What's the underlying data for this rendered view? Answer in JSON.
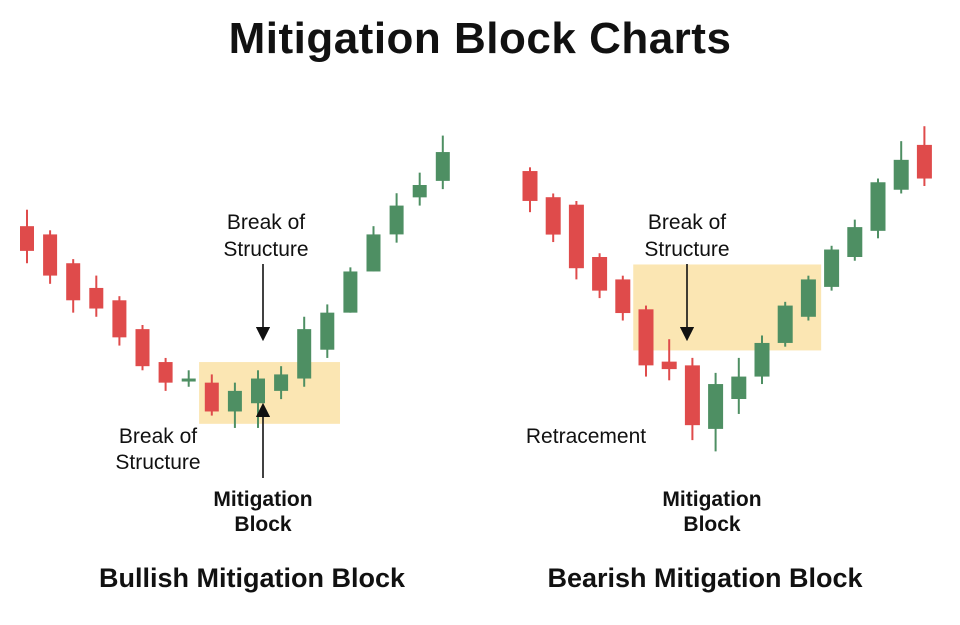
{
  "page": {
    "title": "Mitigation Block Charts"
  },
  "colors": {
    "bull": "#4e8f63",
    "bear": "#df4b4b",
    "zone": "#fbe6b3"
  },
  "chart_data": [
    {
      "type": "candlestick",
      "title": "Bullish Mitigation Block",
      "annotations": {
        "bos_top": [
          "Break of",
          "Structure"
        ],
        "bos_left": [
          "Break of",
          "Structure"
        ],
        "mitigation": [
          "Mitigation",
          "Block"
        ]
      },
      "candles": [
        {
          "o": 78,
          "c": 72,
          "h": 82,
          "l": 69
        },
        {
          "o": 76,
          "c": 66,
          "h": 77,
          "l": 64
        },
        {
          "o": 69,
          "c": 60,
          "h": 70,
          "l": 57
        },
        {
          "o": 63,
          "c": 58,
          "h": 66,
          "l": 56
        },
        {
          "o": 60,
          "c": 51,
          "h": 61,
          "l": 49
        },
        {
          "o": 53,
          "c": 44,
          "h": 54,
          "l": 43
        },
        {
          "o": 45,
          "c": 40,
          "h": 46,
          "l": 38
        },
        {
          "o": 41,
          "c": 41,
          "h": 43,
          "l": 39
        },
        {
          "o": 40,
          "c": 33,
          "h": 42,
          "l": 32
        },
        {
          "o": 33,
          "c": 38,
          "h": 40,
          "l": 29
        },
        {
          "o": 35,
          "c": 41,
          "h": 43,
          "l": 29
        },
        {
          "o": 38,
          "c": 42,
          "h": 44,
          "l": 36
        },
        {
          "o": 41,
          "c": 53,
          "h": 56,
          "l": 39
        },
        {
          "o": 48,
          "c": 57,
          "h": 59,
          "l": 46
        },
        {
          "o": 57,
          "c": 67,
          "h": 68,
          "l": 57
        },
        {
          "o": 67,
          "c": 76,
          "h": 78,
          "l": 67
        },
        {
          "o": 76,
          "c": 83,
          "h": 86,
          "l": 74
        },
        {
          "o": 85,
          "c": 88,
          "h": 91,
          "l": 83
        },
        {
          "o": 89,
          "c": 96,
          "h": 100,
          "l": 87
        }
      ],
      "zone": {
        "start": 8,
        "end": 13,
        "low": 30,
        "high": 45
      },
      "ylim": [
        20,
        105
      ]
    },
    {
      "type": "candlestick",
      "title": "Bearish Mitigation Block",
      "annotations": {
        "bos_top": [
          "Break of",
          "Structure"
        ],
        "retracement": "Retracement",
        "mitigation": [
          "Mitigation",
          "Block"
        ]
      },
      "candles": [
        {
          "o": 85,
          "c": 77,
          "h": 86,
          "l": 74
        },
        {
          "o": 78,
          "c": 68,
          "h": 79,
          "l": 66
        },
        {
          "o": 76,
          "c": 59,
          "h": 77,
          "l": 56
        },
        {
          "o": 62,
          "c": 53,
          "h": 63,
          "l": 51
        },
        {
          "o": 56,
          "c": 47,
          "h": 57,
          "l": 45
        },
        {
          "o": 48,
          "c": 33,
          "h": 49,
          "l": 30
        },
        {
          "o": 34,
          "c": 32,
          "h": 40,
          "l": 29
        },
        {
          "o": 33,
          "c": 17,
          "h": 35,
          "l": 13
        },
        {
          "o": 16,
          "c": 28,
          "h": 31,
          "l": 10
        },
        {
          "o": 24,
          "c": 30,
          "h": 35,
          "l": 20
        },
        {
          "o": 30,
          "c": 39,
          "h": 41,
          "l": 28
        },
        {
          "o": 39,
          "c": 49,
          "h": 50,
          "l": 38
        },
        {
          "o": 46,
          "c": 56,
          "h": 57,
          "l": 45
        },
        {
          "o": 54,
          "c": 64,
          "h": 65,
          "l": 53
        },
        {
          "o": 62,
          "c": 70,
          "h": 72,
          "l": 61
        },
        {
          "o": 69,
          "c": 82,
          "h": 83,
          "l": 67
        },
        {
          "o": 80,
          "c": 88,
          "h": 93,
          "l": 79
        },
        {
          "o": 92,
          "c": 83,
          "h": 97,
          "l": 81
        }
      ],
      "zone": {
        "start": 5,
        "end": 12,
        "low": 37,
        "high": 60
      },
      "ylim": [
        5,
        100
      ]
    }
  ]
}
